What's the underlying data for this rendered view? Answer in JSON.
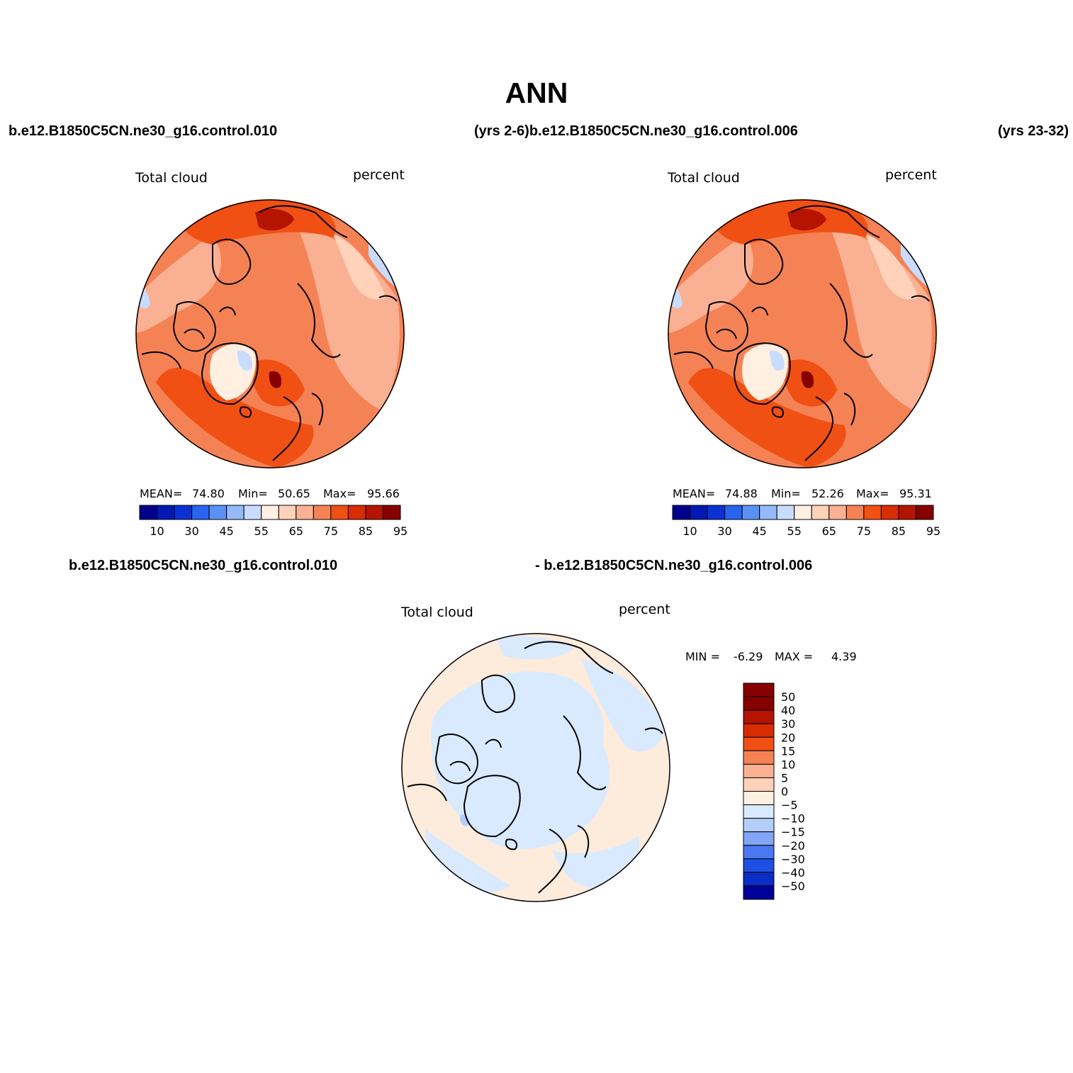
{
  "title": "ANN",
  "header": {
    "case_left": "b.e12.B1850C5CN.ne30_g16.control.010",
    "years_left_and_case_right": "(yrs 2-6)b.e12.B1850C5CN.ne30_g16.control.006",
    "years_right": "(yrs 23-32)"
  },
  "diff_header": {
    "case_a": "b.e12.B1850C5CN.ne30_g16.control.010",
    "case_b": "- b.e12.B1850C5CN.ne30_g16.control.006"
  },
  "panels": [
    {
      "variable": "Total cloud",
      "units": "percent",
      "mean_label": "MEAN=",
      "mean": "74.80",
      "min_label": "Min=",
      "min": "50.65",
      "max_label": "Max=",
      "max": "95.66"
    },
    {
      "variable": "Total cloud",
      "units": "percent",
      "mean_label": "MEAN=",
      "mean": "74.88",
      "min_label": "Min=",
      "min": "52.26",
      "max_label": "Max=",
      "max": "95.31"
    }
  ],
  "diff_panel": {
    "variable": "Total cloud",
    "units": "percent",
    "min_label": "MIN =",
    "min": "-6.29",
    "max_label": "MAX =",
    "max": "4.39"
  },
  "colorbar_field": {
    "tick_labels": [
      "10",
      "30",
      "45",
      "55",
      "65",
      "75",
      "85",
      "95"
    ],
    "colors": [
      "#00008c",
      "#0019b4",
      "#0a32d2",
      "#2864f0",
      "#5a91f5",
      "#96b9fa",
      "#c8dcff",
      "#fff0e1",
      "#ffd2b9",
      "#fab092",
      "#f58255",
      "#f05014",
      "#d72d00",
      "#b41400",
      "#870000"
    ]
  },
  "colorbar_diff": {
    "labels_top_to_bottom": [
      "50",
      "40",
      "30",
      "20",
      "15",
      "10",
      "5",
      "0",
      "−5",
      "−10",
      "−15",
      "−20",
      "−30",
      "−40",
      "−50"
    ],
    "colors_top_to_bottom": [
      "#870000",
      "#b41400",
      "#d72d00",
      "#f05014",
      "#f58255",
      "#fab092",
      "#ffd2b9",
      "#fff0e1",
      "#d9eaff",
      "#b4cdfa",
      "#82a5f5",
      "#4b78f0",
      "#1e50e6",
      "#0a2dc8",
      "#00009a"
    ]
  },
  "colors": {
    "land_outline": "#000000",
    "field_low": "#fab092",
    "field_mid": "#f58255",
    "field_high": "#f05014",
    "field_peak": "#d72d00",
    "diff_pos": "#fdebdc",
    "diff_neg": "#d9eaff"
  }
}
